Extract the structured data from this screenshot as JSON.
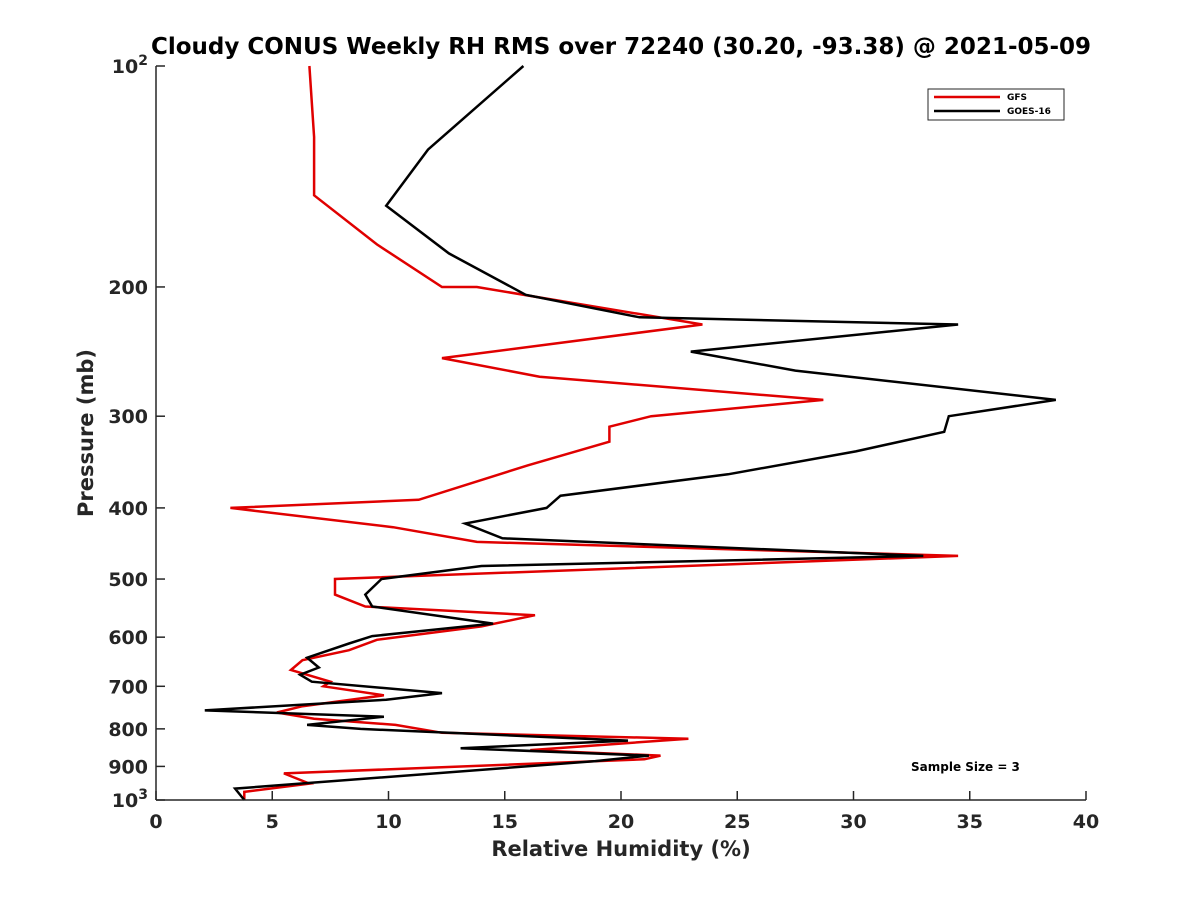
{
  "chart_data": {
    "type": "line",
    "title": "Cloudy CONUS Weekly RH RMS over 72240 (30.20, -93.38) @ 2021-05-09",
    "xlabel": "Relative Humidity (%)",
    "ylabel": "Pressure (mb)",
    "xlim": [
      0,
      40
    ],
    "ylim": [
      100,
      1000
    ],
    "yscale": "log",
    "y_reversed": true,
    "x_ticks": [
      0,
      5,
      10,
      15,
      20,
      25,
      30,
      35,
      40
    ],
    "y_ticks": [
      {
        "value": 100,
        "base": "10",
        "exp": "2"
      },
      {
        "value": 200,
        "label": "200"
      },
      {
        "value": 300,
        "label": "300"
      },
      {
        "value": 400,
        "label": "400"
      },
      {
        "value": 500,
        "label": "500"
      },
      {
        "value": 600,
        "label": "600"
      },
      {
        "value": 700,
        "label": "700"
      },
      {
        "value": 800,
        "label": "800"
      },
      {
        "value": 900,
        "label": "900"
      },
      {
        "value": 1000,
        "base": "10",
        "exp": "3"
      }
    ],
    "legend_position": "top-right",
    "annotation": "Sample Size = 3",
    "series": [
      {
        "name": "GFS",
        "color": "#e00000",
        "points": [
          [
            6.6,
            100
          ],
          [
            6.8,
            125
          ],
          [
            6.8,
            150
          ],
          [
            9.5,
            175
          ],
          [
            12.3,
            200
          ],
          [
            13.8,
            200
          ],
          [
            23.5,
            225
          ],
          [
            12.3,
            250
          ],
          [
            16.5,
            265
          ],
          [
            28.7,
            285
          ],
          [
            21.3,
            300
          ],
          [
            19.5,
            310
          ],
          [
            19.5,
            325
          ],
          [
            16.0,
            350
          ],
          [
            11.3,
            390
          ],
          [
            3.2,
            400
          ],
          [
            10.2,
            425
          ],
          [
            13.8,
            445
          ],
          [
            34.5,
            465
          ],
          [
            7.7,
            500
          ],
          [
            7.7,
            525
          ],
          [
            9.0,
            545
          ],
          [
            16.3,
            560
          ],
          [
            14.0,
            580
          ],
          [
            9.5,
            605
          ],
          [
            8.3,
            625
          ],
          [
            6.3,
            645
          ],
          [
            5.8,
            665
          ],
          [
            7.5,
            690
          ],
          [
            7.2,
            700
          ],
          [
            9.8,
            720
          ],
          [
            6.3,
            745
          ],
          [
            5.2,
            760
          ],
          [
            6.8,
            775
          ],
          [
            10.3,
            790
          ],
          [
            12.3,
            810
          ],
          [
            22.9,
            825
          ],
          [
            16.1,
            855
          ],
          [
            21.7,
            870
          ],
          [
            21.0,
            880
          ],
          [
            5.5,
            920
          ],
          [
            6.6,
            950
          ],
          [
            3.8,
            975
          ],
          [
            3.8,
            1000
          ]
        ]
      },
      {
        "name": "GOES-16",
        "color": "#000000",
        "points": [
          [
            15.8,
            100
          ],
          [
            11.7,
            130
          ],
          [
            9.9,
            155
          ],
          [
            12.6,
            180
          ],
          [
            15.9,
            205
          ],
          [
            20.8,
            220
          ],
          [
            34.5,
            225
          ],
          [
            23.0,
            245
          ],
          [
            27.5,
            260
          ],
          [
            38.7,
            285
          ],
          [
            34.1,
            300
          ],
          [
            33.9,
            315
          ],
          [
            30.1,
            335
          ],
          [
            24.6,
            360
          ],
          [
            17.4,
            385
          ],
          [
            16.8,
            400
          ],
          [
            13.3,
            420
          ],
          [
            14.9,
            440
          ],
          [
            33.0,
            465
          ],
          [
            14.0,
            480
          ],
          [
            9.7,
            500
          ],
          [
            9.0,
            525
          ],
          [
            9.3,
            545
          ],
          [
            14.5,
            575
          ],
          [
            9.3,
            598
          ],
          [
            8.3,
            612
          ],
          [
            6.5,
            640
          ],
          [
            7.0,
            660
          ],
          [
            6.2,
            675
          ],
          [
            6.7,
            690
          ],
          [
            12.3,
            715
          ],
          [
            9.9,
            730
          ],
          [
            2.1,
            755
          ],
          [
            9.8,
            770
          ],
          [
            6.5,
            790
          ],
          [
            8.8,
            800
          ],
          [
            20.3,
            830
          ],
          [
            13.1,
            850
          ],
          [
            21.2,
            870
          ],
          [
            18.9,
            885
          ],
          [
            3.4,
            965
          ],
          [
            3.8,
            1000
          ]
        ]
      }
    ]
  }
}
